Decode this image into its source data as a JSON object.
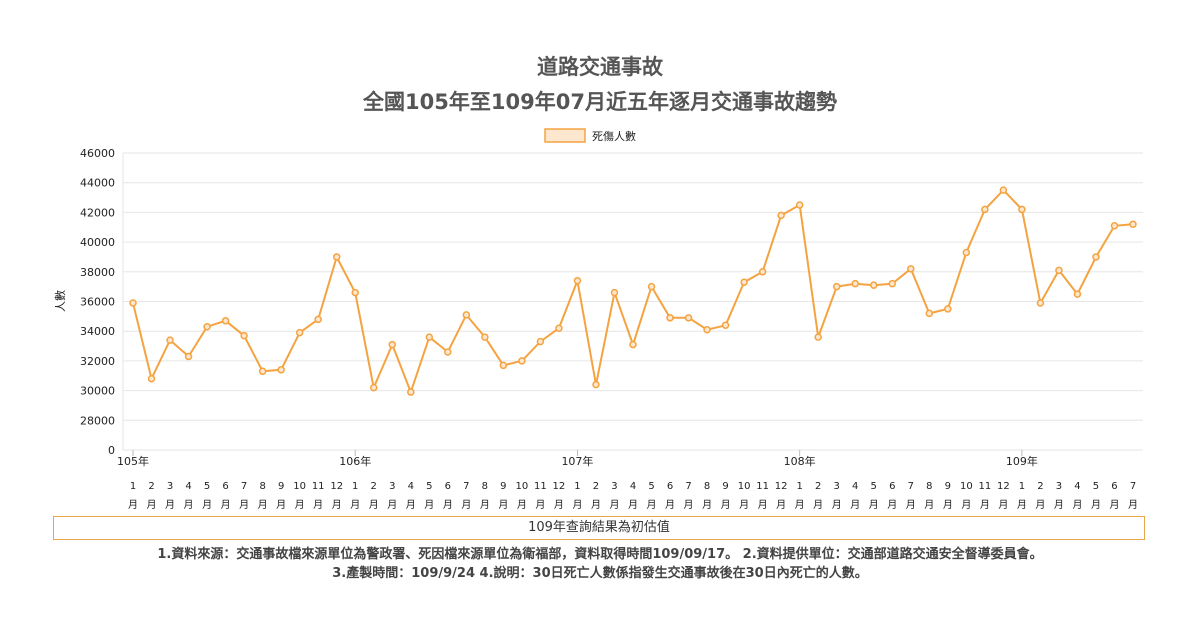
{
  "chart_data": {
    "type": "line",
    "title": [
      "道路交通事故",
      "全國105年至109年07月近五年逐月交通事故趨勢"
    ],
    "ylabel": "人數",
    "ylim": [
      0,
      46000
    ],
    "yticks": [
      0,
      28000,
      30000,
      32000,
      34000,
      36000,
      38000,
      40000,
      42000,
      44000,
      46000
    ],
    "legend": {
      "label": "死傷人數",
      "position": "top-center"
    },
    "grid": true,
    "years": [
      "105年",
      "106年",
      "107年",
      "108年",
      "109年"
    ],
    "month_suffix": "月",
    "series": [
      {
        "name": "死傷人數",
        "color": "#f5a340",
        "points": [
          {
            "year": "105年",
            "month": "1",
            "value": 35900
          },
          {
            "year": "105年",
            "month": "2",
            "value": 30800
          },
          {
            "year": "105年",
            "month": "3",
            "value": 33400
          },
          {
            "year": "105年",
            "month": "4",
            "value": 32300
          },
          {
            "year": "105年",
            "month": "5",
            "value": 34300
          },
          {
            "year": "105年",
            "month": "6",
            "value": 34700
          },
          {
            "year": "105年",
            "month": "7",
            "value": 33700
          },
          {
            "year": "105年",
            "month": "8",
            "value": 31300
          },
          {
            "year": "105年",
            "month": "9",
            "value": 31400
          },
          {
            "year": "105年",
            "month": "10",
            "value": 33900
          },
          {
            "year": "105年",
            "month": "11",
            "value": 34800
          },
          {
            "year": "105年",
            "month": "12",
            "value": 39000
          },
          {
            "year": "106年",
            "month": "1",
            "value": 36600
          },
          {
            "year": "106年",
            "month": "2",
            "value": 30200
          },
          {
            "year": "106年",
            "month": "3",
            "value": 33100
          },
          {
            "year": "106年",
            "month": "4",
            "value": 29900
          },
          {
            "year": "106年",
            "month": "5",
            "value": 33600
          },
          {
            "year": "106年",
            "month": "6",
            "value": 32600
          },
          {
            "year": "106年",
            "month": "7",
            "value": 35100
          },
          {
            "year": "106年",
            "month": "8",
            "value": 33600
          },
          {
            "year": "106年",
            "month": "9",
            "value": 31700
          },
          {
            "year": "106年",
            "month": "10",
            "value": 32000
          },
          {
            "year": "106年",
            "month": "11",
            "value": 33300
          },
          {
            "year": "106年",
            "month": "12",
            "value": 34200
          },
          {
            "year": "107年",
            "month": "1",
            "value": 37400
          },
          {
            "year": "107年",
            "month": "2",
            "value": 30400
          },
          {
            "year": "107年",
            "month": "3",
            "value": 36600
          },
          {
            "year": "107年",
            "month": "4",
            "value": 33100
          },
          {
            "year": "107年",
            "month": "5",
            "value": 37000
          },
          {
            "year": "107年",
            "month": "6",
            "value": 34900
          },
          {
            "year": "107年",
            "month": "7",
            "value": 34900
          },
          {
            "year": "107年",
            "month": "8",
            "value": 34100
          },
          {
            "year": "107年",
            "month": "9",
            "value": 34400
          },
          {
            "year": "107年",
            "month": "10",
            "value": 37300
          },
          {
            "year": "107年",
            "month": "11",
            "value": 38000
          },
          {
            "year": "107年",
            "month": "12",
            "value": 41800
          },
          {
            "year": "108年",
            "month": "1",
            "value": 42500
          },
          {
            "year": "108年",
            "month": "2",
            "value": 33600
          },
          {
            "year": "108年",
            "month": "3",
            "value": 37000
          },
          {
            "year": "108年",
            "month": "4",
            "value": 37200
          },
          {
            "year": "108年",
            "month": "5",
            "value": 37100
          },
          {
            "year": "108年",
            "month": "6",
            "value": 37200
          },
          {
            "year": "108年",
            "month": "7",
            "value": 38200
          },
          {
            "year": "108年",
            "month": "8",
            "value": 35200
          },
          {
            "year": "108年",
            "month": "9",
            "value": 35500
          },
          {
            "year": "108年",
            "month": "10",
            "value": 39300
          },
          {
            "year": "108年",
            "month": "11",
            "value": 42200
          },
          {
            "year": "108年",
            "month": "12",
            "value": 43500
          },
          {
            "year": "109年",
            "month": "1",
            "value": 42200
          },
          {
            "year": "109年",
            "month": "2",
            "value": 35900
          },
          {
            "year": "109年",
            "month": "3",
            "value": 38100
          },
          {
            "year": "109年",
            "month": "4",
            "value": 36500
          },
          {
            "year": "109年",
            "month": "5",
            "value": 39000
          },
          {
            "year": "109年",
            "month": "6",
            "value": 41100
          },
          {
            "year": "109年",
            "month": "7",
            "value": 41200
          }
        ]
      }
    ]
  },
  "note_box": "109年查詢結果為初估值",
  "footer": {
    "line1": "1.資料來源：交通事故檔來源單位為警政署、死因檔來源單位為衛福部，資料取得時間109/09/17。 2.資料提供單位：交通部道路交通安全督導委員會。",
    "line2": "3.產製時間：109/9/24 4.說明：30日死亡人數係指發生交通事故後在30日內死亡的人數。"
  }
}
